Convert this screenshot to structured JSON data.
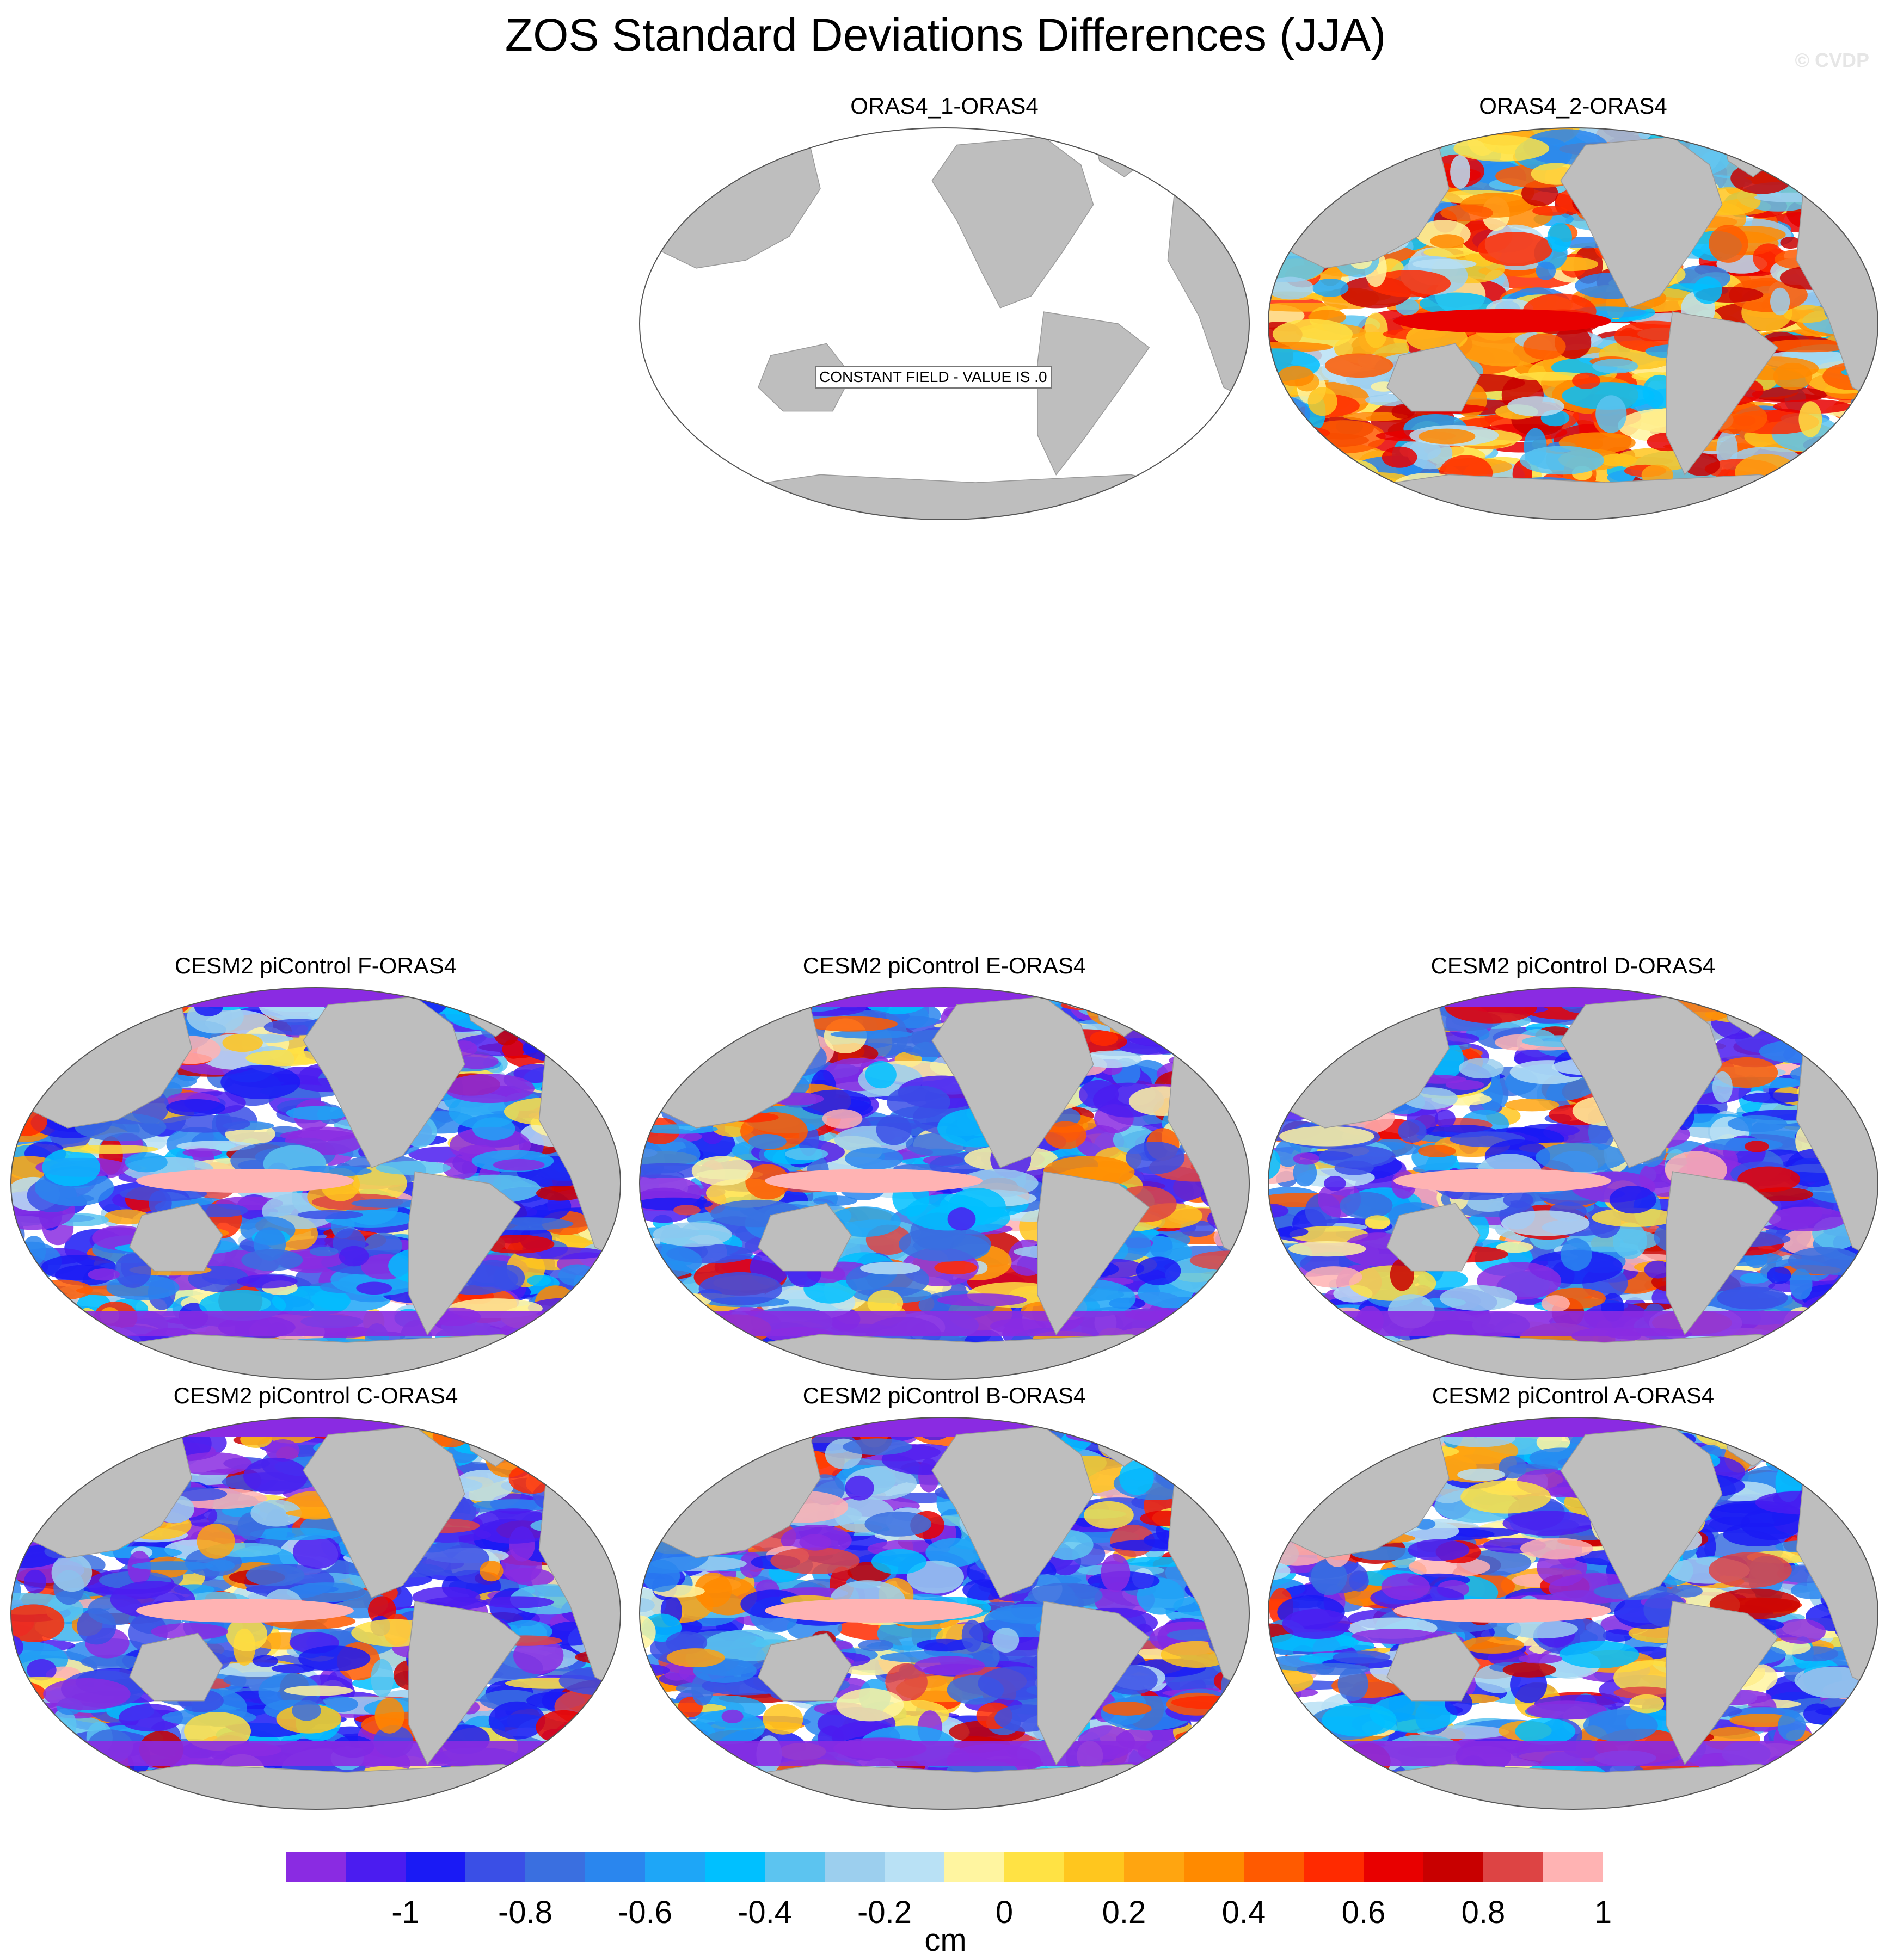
{
  "title": "ZOS Standard Deviations Differences (JJA)",
  "watermark": "© CVDP",
  "panels": [
    {
      "title": "ORAS4_1-ORAS4",
      "constant_note": "CONSTANT FIELD - VALUE IS .0"
    },
    {
      "title": "ORAS4_2-ORAS4"
    },
    {
      "title": "CESM2 piControl F-ORAS4"
    },
    {
      "title": "CESM2 piControl E-ORAS4"
    },
    {
      "title": "CESM2 piControl D-ORAS4"
    },
    {
      "title": "CESM2 piControl C-ORAS4"
    },
    {
      "title": "CESM2 piControl B-ORAS4"
    },
    {
      "title": "CESM2 piControl A-ORAS4"
    }
  ],
  "colorbar": {
    "unit": "cm",
    "tick_labels": [
      "-1",
      "-0.8",
      "-0.6",
      "-0.4",
      "-0.2",
      "0",
      "0.2",
      "0.4",
      "0.6",
      "0.8",
      "1"
    ],
    "colors": [
      "#8a2be2",
      "#4b1cf0",
      "#1a1af5",
      "#3a4fe6",
      "#3a6fe0",
      "#2a86ee",
      "#1ea6f7",
      "#00c0ff",
      "#5cc4f0",
      "#9ccfee",
      "#b9e1f5",
      "#fff5a0",
      "#ffe244",
      "#ffc61e",
      "#ffa510",
      "#ff8a00",
      "#ff5a00",
      "#ff2a00",
      "#e80000",
      "#c80000",
      "#dd4444",
      "#ffb3b3"
    ]
  }
}
